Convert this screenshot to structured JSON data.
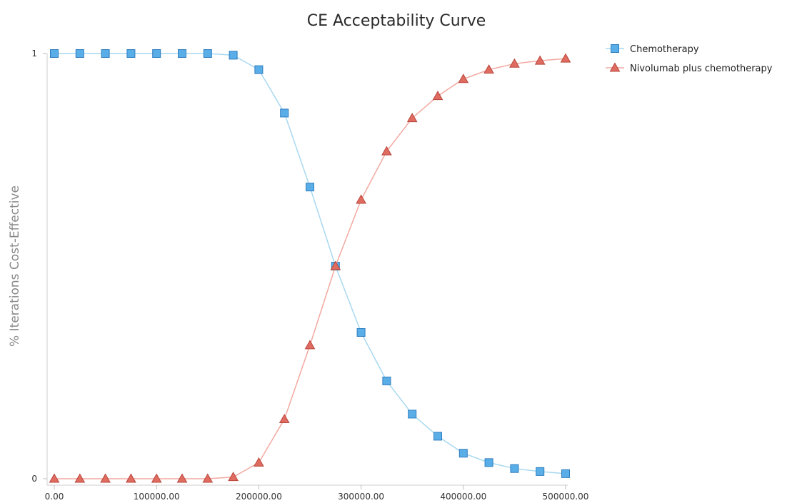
{
  "chart_data": {
    "type": "line",
    "title": "CE Acceptability Curve",
    "xlabel": "",
    "ylabel": "% Iterations Cost-Effective",
    "x": [
      0,
      25000,
      50000,
      75000,
      100000,
      125000,
      150000,
      175000,
      200000,
      225000,
      250000,
      275000,
      300000,
      325000,
      350000,
      375000,
      400000,
      425000,
      450000,
      475000,
      500000
    ],
    "xlim": [
      0,
      500000
    ],
    "ylim": [
      0,
      1
    ],
    "x_ticks": [
      {
        "value": 0,
        "label": "0.00"
      },
      {
        "value": 100000,
        "label": "100000.00"
      },
      {
        "value": 200000,
        "label": "200000.00"
      },
      {
        "value": 300000,
        "label": "300000.00"
      },
      {
        "value": 400000,
        "label": "400000.00"
      },
      {
        "value": 500000,
        "label": "500000.00"
      }
    ],
    "y_ticks": [
      {
        "value": 0,
        "label": "0"
      },
      {
        "value": 1,
        "label": "1"
      }
    ],
    "grid": false,
    "legend_position": "top-right",
    "series": [
      {
        "name": "Chemotherapy",
        "marker": "square",
        "line_color": "#a8d8f0",
        "marker_color": "#5aaee8",
        "marker_edge": "#2e7cbf",
        "values": [
          1,
          1,
          1,
          1,
          1,
          1,
          1,
          0.996,
          0.962,
          0.86,
          0.686,
          0.5,
          0.344,
          0.23,
          0.152,
          0.1,
          0.06,
          0.038,
          0.024,
          0.017,
          0.012
        ]
      },
      {
        "name": "Nivolumab plus chemotherapy",
        "marker": "triangle",
        "line_color": "#f2a8a0",
        "marker_color": "#e06b60",
        "marker_edge": "#b8463c",
        "values": [
          0,
          0,
          0,
          0,
          0,
          0,
          0,
          0.004,
          0.038,
          0.14,
          0.314,
          0.5,
          0.656,
          0.77,
          0.848,
          0.9,
          0.94,
          0.962,
          0.976,
          0.983,
          0.988
        ]
      }
    ]
  }
}
